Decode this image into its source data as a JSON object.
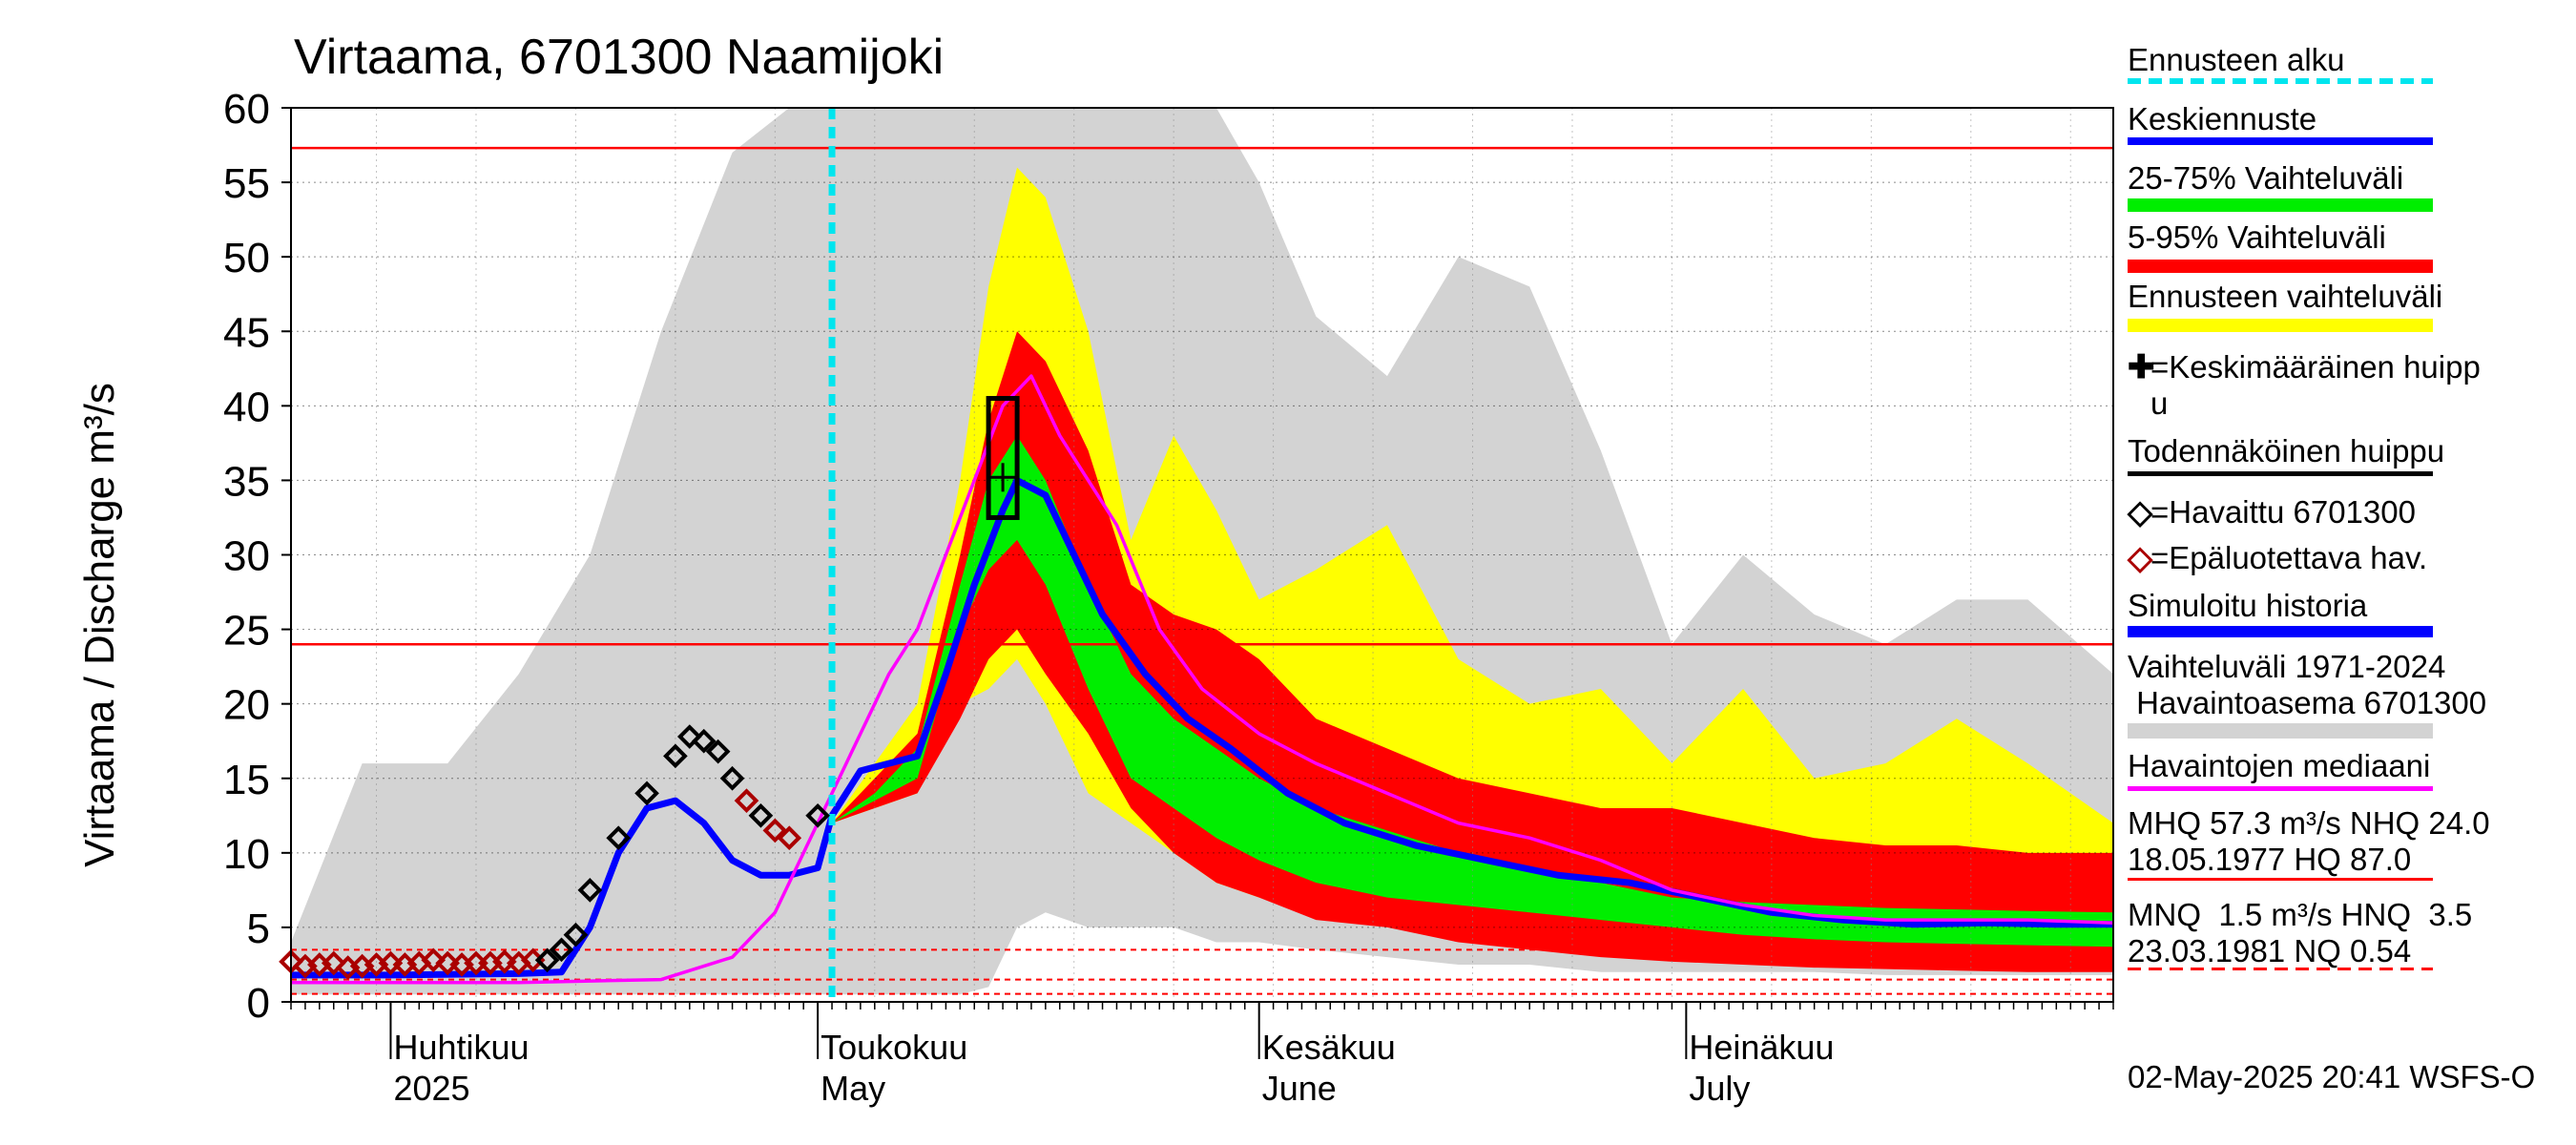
{
  "chart_data": {
    "type": "area",
    "title": "Virtaama, 6701300 Naamijoki",
    "ylabel": "Virtaama / Discharge    m³/s",
    "ylim": [
      0,
      60
    ],
    "yticks": [
      "0",
      "5",
      "10",
      "15",
      "20",
      "25",
      "30",
      "35",
      "40",
      "45",
      "50",
      "55",
      "60"
    ],
    "xlim": [
      "2025-03-25",
      "2025-07-31"
    ],
    "x_month_labels": [
      {
        "date": "2025-04-01",
        "line1": "Huhtikuu",
        "line2": "2025"
      },
      {
        "date": "2025-05-01",
        "line1": "Toukokuu",
        "line2": "May"
      },
      {
        "date": "2025-06-01",
        "line1": "Kesäkuu",
        "line2": "June"
      },
      {
        "date": "2025-07-01",
        "line1": "Heinäkuu",
        "line2": "July"
      }
    ],
    "forecast_start": "2025-05-02",
    "reference_lines": [
      {
        "name": "MHQ",
        "value": 57.3,
        "style": "solid",
        "color": "#ff0000"
      },
      {
        "name": "NHQ",
        "value": 24.0,
        "style": "solid",
        "color": "#ff0000"
      },
      {
        "name": "MNQ",
        "value": 1.5,
        "style": "dashed",
        "color": "#ff0000"
      },
      {
        "name": "NQ",
        "value": 0.54,
        "style": "dashed",
        "color": "#ff0000"
      },
      {
        "name": "HNQ",
        "value": 3.5,
        "style": "dashed",
        "color": "#ff0000"
      }
    ],
    "bands": {
      "x": [
        "2025-03-25",
        "2025-03-30",
        "2025-04-05",
        "2025-04-10",
        "2025-04-15",
        "2025-04-20",
        "2025-04-25",
        "2025-04-29",
        "2025-05-02",
        "2025-05-05",
        "2025-05-08",
        "2025-05-11",
        "2025-05-13",
        "2025-05-15",
        "2025-05-17",
        "2025-05-20",
        "2025-05-23",
        "2025-05-26",
        "2025-05-29",
        "2025-06-01",
        "2025-06-05",
        "2025-06-10",
        "2025-06-15",
        "2025-06-20",
        "2025-06-25",
        "2025-06-30",
        "2025-07-05",
        "2025-07-10",
        "2025-07-15",
        "2025-07-20",
        "2025-07-25",
        "2025-07-31"
      ],
      "hist_max": [
        4,
        16,
        16,
        22,
        30,
        45,
        57,
        60,
        60,
        60,
        60,
        60,
        60,
        60,
        60,
        60,
        60,
        60,
        60,
        55,
        46,
        42,
        50,
        48,
        37,
        24,
        30,
        26,
        24,
        27,
        27,
        22
      ],
      "hist_min": [
        0.5,
        0.5,
        0.5,
        0.5,
        0.5,
        0.5,
        0.5,
        0.5,
        0.5,
        0.5,
        0.5,
        0.5,
        1,
        5,
        6,
        5,
        5,
        5,
        4,
        4,
        3.5,
        3,
        2.5,
        2.5,
        2,
        2,
        2,
        2,
        1.8,
        1.8,
        1.8,
        1.8
      ],
      "forecast_max": [
        null,
        null,
        null,
        null,
        null,
        null,
        null,
        null,
        12,
        16,
        20,
        35,
        48,
        56,
        54,
        45,
        31,
        38,
        33,
        27,
        29,
        32,
        23,
        20,
        21,
        16,
        21,
        15,
        16,
        19,
        16,
        12
      ],
      "forecast_min": [
        null,
        null,
        null,
        null,
        null,
        null,
        null,
        null,
        12,
        13,
        14,
        20,
        21,
        23,
        20,
        14,
        12,
        10,
        8,
        7,
        6,
        5.5,
        5,
        4.5,
        4,
        3.5,
        3,
        3,
        2.5,
        2.5,
        2.5,
        2.5
      ],
      "p05_95_max": [
        null,
        null,
        null,
        null,
        null,
        null,
        null,
        null,
        12,
        15,
        18,
        30,
        39,
        45,
        43,
        37,
        28,
        26,
        25,
        23,
        19,
        17,
        15,
        14,
        13,
        13,
        12,
        11,
        10.5,
        10.5,
        10,
        10
      ],
      "p05_95_min": [
        null,
        null,
        null,
        null,
        null,
        null,
        null,
        null,
        12,
        13,
        14,
        19,
        23,
        25,
        22,
        18,
        13,
        10,
        8,
        7,
        5.5,
        5,
        4,
        3.5,
        3,
        2.7,
        2.5,
        2.3,
        2.2,
        2.1,
        2,
        2
      ],
      "p25_75_max": [
        null,
        null,
        null,
        null,
        null,
        null,
        null,
        null,
        12,
        14,
        17,
        28,
        35,
        38,
        35,
        28,
        22,
        19,
        17,
        15,
        13,
        11.5,
        10,
        9,
        8,
        7,
        6.7,
        6.5,
        6.3,
        6.2,
        6.1,
        6
      ],
      "p25_75_min": [
        null,
        null,
        null,
        null,
        null,
        null,
        null,
        null,
        12,
        13.5,
        15,
        25,
        29,
        31,
        28,
        21,
        15,
        13,
        11,
        9.5,
        8,
        7,
        6.5,
        6,
        5.5,
        5,
        4.5,
        4.2,
        4,
        3.9,
        3.8,
        3.7
      ]
    },
    "series": [
      {
        "name": "Keskiennuste",
        "color": "#0000ff",
        "x": [
          "2025-05-02",
          "2025-05-04",
          "2025-05-06",
          "2025-05-08",
          "2025-05-10",
          "2025-05-12",
          "2025-05-14",
          "2025-05-15",
          "2025-05-17",
          "2025-05-19",
          "2025-05-21",
          "2025-05-24",
          "2025-05-27",
          "2025-05-30",
          "2025-06-03",
          "2025-06-07",
          "2025-06-12",
          "2025-06-17",
          "2025-06-22",
          "2025-06-27",
          "2025-07-02",
          "2025-07-07",
          "2025-07-12",
          "2025-07-17",
          "2025-07-22",
          "2025-07-27",
          "2025-07-31"
        ],
        "y": [
          12.5,
          15.5,
          16,
          16.5,
          22,
          28,
          33,
          35,
          34,
          30,
          26,
          22,
          19,
          17,
          14,
          12,
          10.5,
          9.5,
          8.5,
          8,
          7,
          6,
          5.5,
          5.2,
          5.3,
          5.2,
          5.2
        ]
      },
      {
        "name": "Simuloitu historia",
        "color": "#0000ff",
        "x": [
          "2025-03-25",
          "2025-04-01",
          "2025-04-10",
          "2025-04-13",
          "2025-04-15",
          "2025-04-17",
          "2025-04-19",
          "2025-04-21",
          "2025-04-23",
          "2025-04-25",
          "2025-04-27",
          "2025-04-29",
          "2025-05-01",
          "2025-05-02"
        ],
        "y": [
          1.8,
          1.8,
          1.9,
          2,
          5,
          10,
          13,
          13.5,
          12,
          9.5,
          8.5,
          8.5,
          9,
          12.5
        ]
      },
      {
        "name": "Havaintojen mediaani",
        "color": "#ff00ff",
        "x": [
          "2025-03-25",
          "2025-04-10",
          "2025-04-20",
          "2025-04-25",
          "2025-04-28",
          "2025-04-30",
          "2025-05-02",
          "2025-05-04",
          "2025-05-06",
          "2025-05-08",
          "2025-05-10",
          "2025-05-12",
          "2025-05-14",
          "2025-05-16",
          "2025-05-18",
          "2025-05-20",
          "2025-05-22",
          "2025-05-25",
          "2025-05-28",
          "2025-06-01",
          "2025-06-05",
          "2025-06-10",
          "2025-06-15",
          "2025-06-20",
          "2025-06-25",
          "2025-06-30",
          "2025-07-05",
          "2025-07-10",
          "2025-07-15",
          "2025-07-20",
          "2025-07-25",
          "2025-07-31"
        ],
        "y": [
          1.3,
          1.3,
          1.5,
          3,
          6,
          10,
          14,
          18,
          22,
          25,
          30,
          35,
          40,
          42,
          38,
          35,
          32,
          25,
          21,
          18,
          16,
          14,
          12,
          11,
          9.5,
          7.5,
          6.5,
          5.8,
          5.5,
          5.5,
          5.5,
          5.3
        ]
      }
    ],
    "observed": {
      "name": "Havaittu 6701300",
      "x": [
        "2025-04-12",
        "2025-04-13",
        "2025-04-14",
        "2025-04-15",
        "2025-04-17",
        "2025-04-19",
        "2025-04-21",
        "2025-04-22",
        "2025-04-23",
        "2025-04-24",
        "2025-04-25",
        "2025-04-27",
        "2025-05-01"
      ],
      "y": [
        2.8,
        3.5,
        4.5,
        7.5,
        11,
        14,
        16.5,
        17.8,
        17.5,
        16.8,
        15,
        12.5,
        12.5
      ]
    },
    "unreliable": {
      "name": "Epäluotettava hav.",
      "x": [
        "2025-03-25",
        "2025-03-26",
        "2025-03-27",
        "2025-03-28",
        "2025-03-29",
        "2025-03-30",
        "2025-03-31",
        "2025-04-01",
        "2025-04-02",
        "2025-04-03",
        "2025-04-04",
        "2025-04-05",
        "2025-04-06",
        "2025-04-07",
        "2025-04-08",
        "2025-04-09",
        "2025-04-10",
        "2025-04-11",
        "2025-04-26",
        "2025-04-28",
        "2025-04-29"
      ],
      "y": [
        2.7,
        2.4,
        2.5,
        2.6,
        2.3,
        2.4,
        2.5,
        2.6,
        2.5,
        2.6,
        2.8,
        2.6,
        2.5,
        2.6,
        2.6,
        2.7,
        2.6,
        2.8,
        13.5,
        11.5,
        11
      ]
    },
    "peak_box": {
      "x": "2025-05-14",
      "ymin": 32.5,
      "ymax": 40.5,
      "mean_peak": 35.2
    }
  },
  "legend": [
    {
      "key": "forecast_start",
      "label": "Ennusteen alku",
      "color": "#00e5ee",
      "style": "dashed"
    },
    {
      "key": "mean_forecast",
      "label": "Keskiennuste",
      "color": "#0000ff",
      "style": "solid"
    },
    {
      "key": "p25_75",
      "label": "25-75% Vaihteluväli",
      "color": "#00ee00",
      "style": "solid"
    },
    {
      "key": "p5_95",
      "label": "5-95% Vaihteluväli",
      "color": "#ff0000",
      "style": "solid"
    },
    {
      "key": "forecast_range",
      "label": "Ennusteen vaihteluväli",
      "color": "#ffff00",
      "style": "solid"
    },
    {
      "key": "mean_peak",
      "label": "=Keskimääräinen huipp\nu",
      "color": "#000000",
      "style": "none"
    },
    {
      "key": "probable_peak",
      "label": "Todennäköinen huippu",
      "color": "#000000",
      "style": "solid"
    },
    {
      "key": "observed",
      "label": "=Havaittu 6701300",
      "color": "#000000",
      "style": "none"
    },
    {
      "key": "unreliable",
      "label": "=Epäluotettava hav.",
      "color": "#aa0000",
      "style": "none"
    },
    {
      "key": "simulated",
      "label": "Simuloitu historia",
      "color": "#0000ff",
      "style": "solid"
    },
    {
      "key": "historical_range",
      "label": "Vaihteluväli 1971-2024\n Havaintoasema 6701300",
      "color": "#d3d3d3",
      "style": "solid"
    },
    {
      "key": "median",
      "label": "Havaintojen mediaani",
      "color": "#ff00ff",
      "style": "solid"
    },
    {
      "key": "stats_high",
      "label": "MHQ 57.3 m³/s NHQ 24.0\n18.05.1977 HQ 87.0",
      "color": "#ff0000",
      "style": "solid"
    },
    {
      "key": "stats_low",
      "label": "MNQ  1.5 m³/s HNQ  3.5\n23.03.1981 NQ 0.54",
      "color": "#ff0000",
      "style": "dashed"
    }
  ],
  "footer": "02-May-2025 20:41 WSFS-O"
}
